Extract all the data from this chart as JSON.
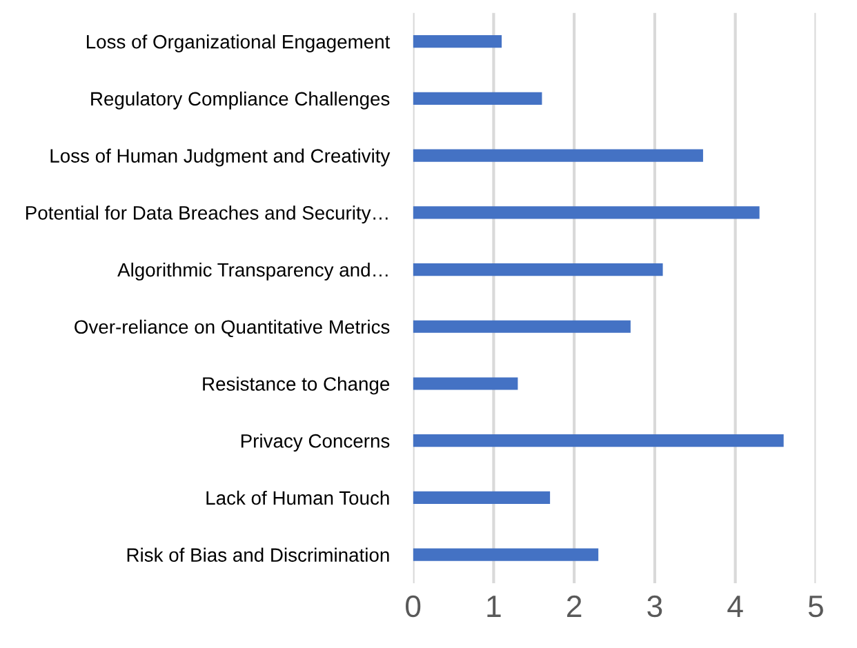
{
  "chart_data": {
    "type": "bar",
    "orientation": "horizontal",
    "categories": [
      "Loss of Organizational Engagement",
      "Regulatory Compliance Challenges",
      "Loss of Human Judgment and Creativity",
      "Potential for Data Breaches and Security…",
      "Algorithmic Transparency and…",
      "Over-reliance on Quantitative Metrics",
      "Resistance to Change",
      "Privacy Concerns",
      "Lack of Human Touch",
      "Risk of Bias and Discrimination"
    ],
    "values": [
      1.1,
      1.6,
      3.6,
      4.3,
      3.1,
      2.7,
      1.3,
      4.6,
      1.7,
      2.3
    ],
    "color": "#4472c4",
    "xlim": [
      0,
      5
    ],
    "xticks": [
      0,
      1,
      2,
      3,
      4,
      5
    ],
    "grid": "x",
    "legend": false
  }
}
